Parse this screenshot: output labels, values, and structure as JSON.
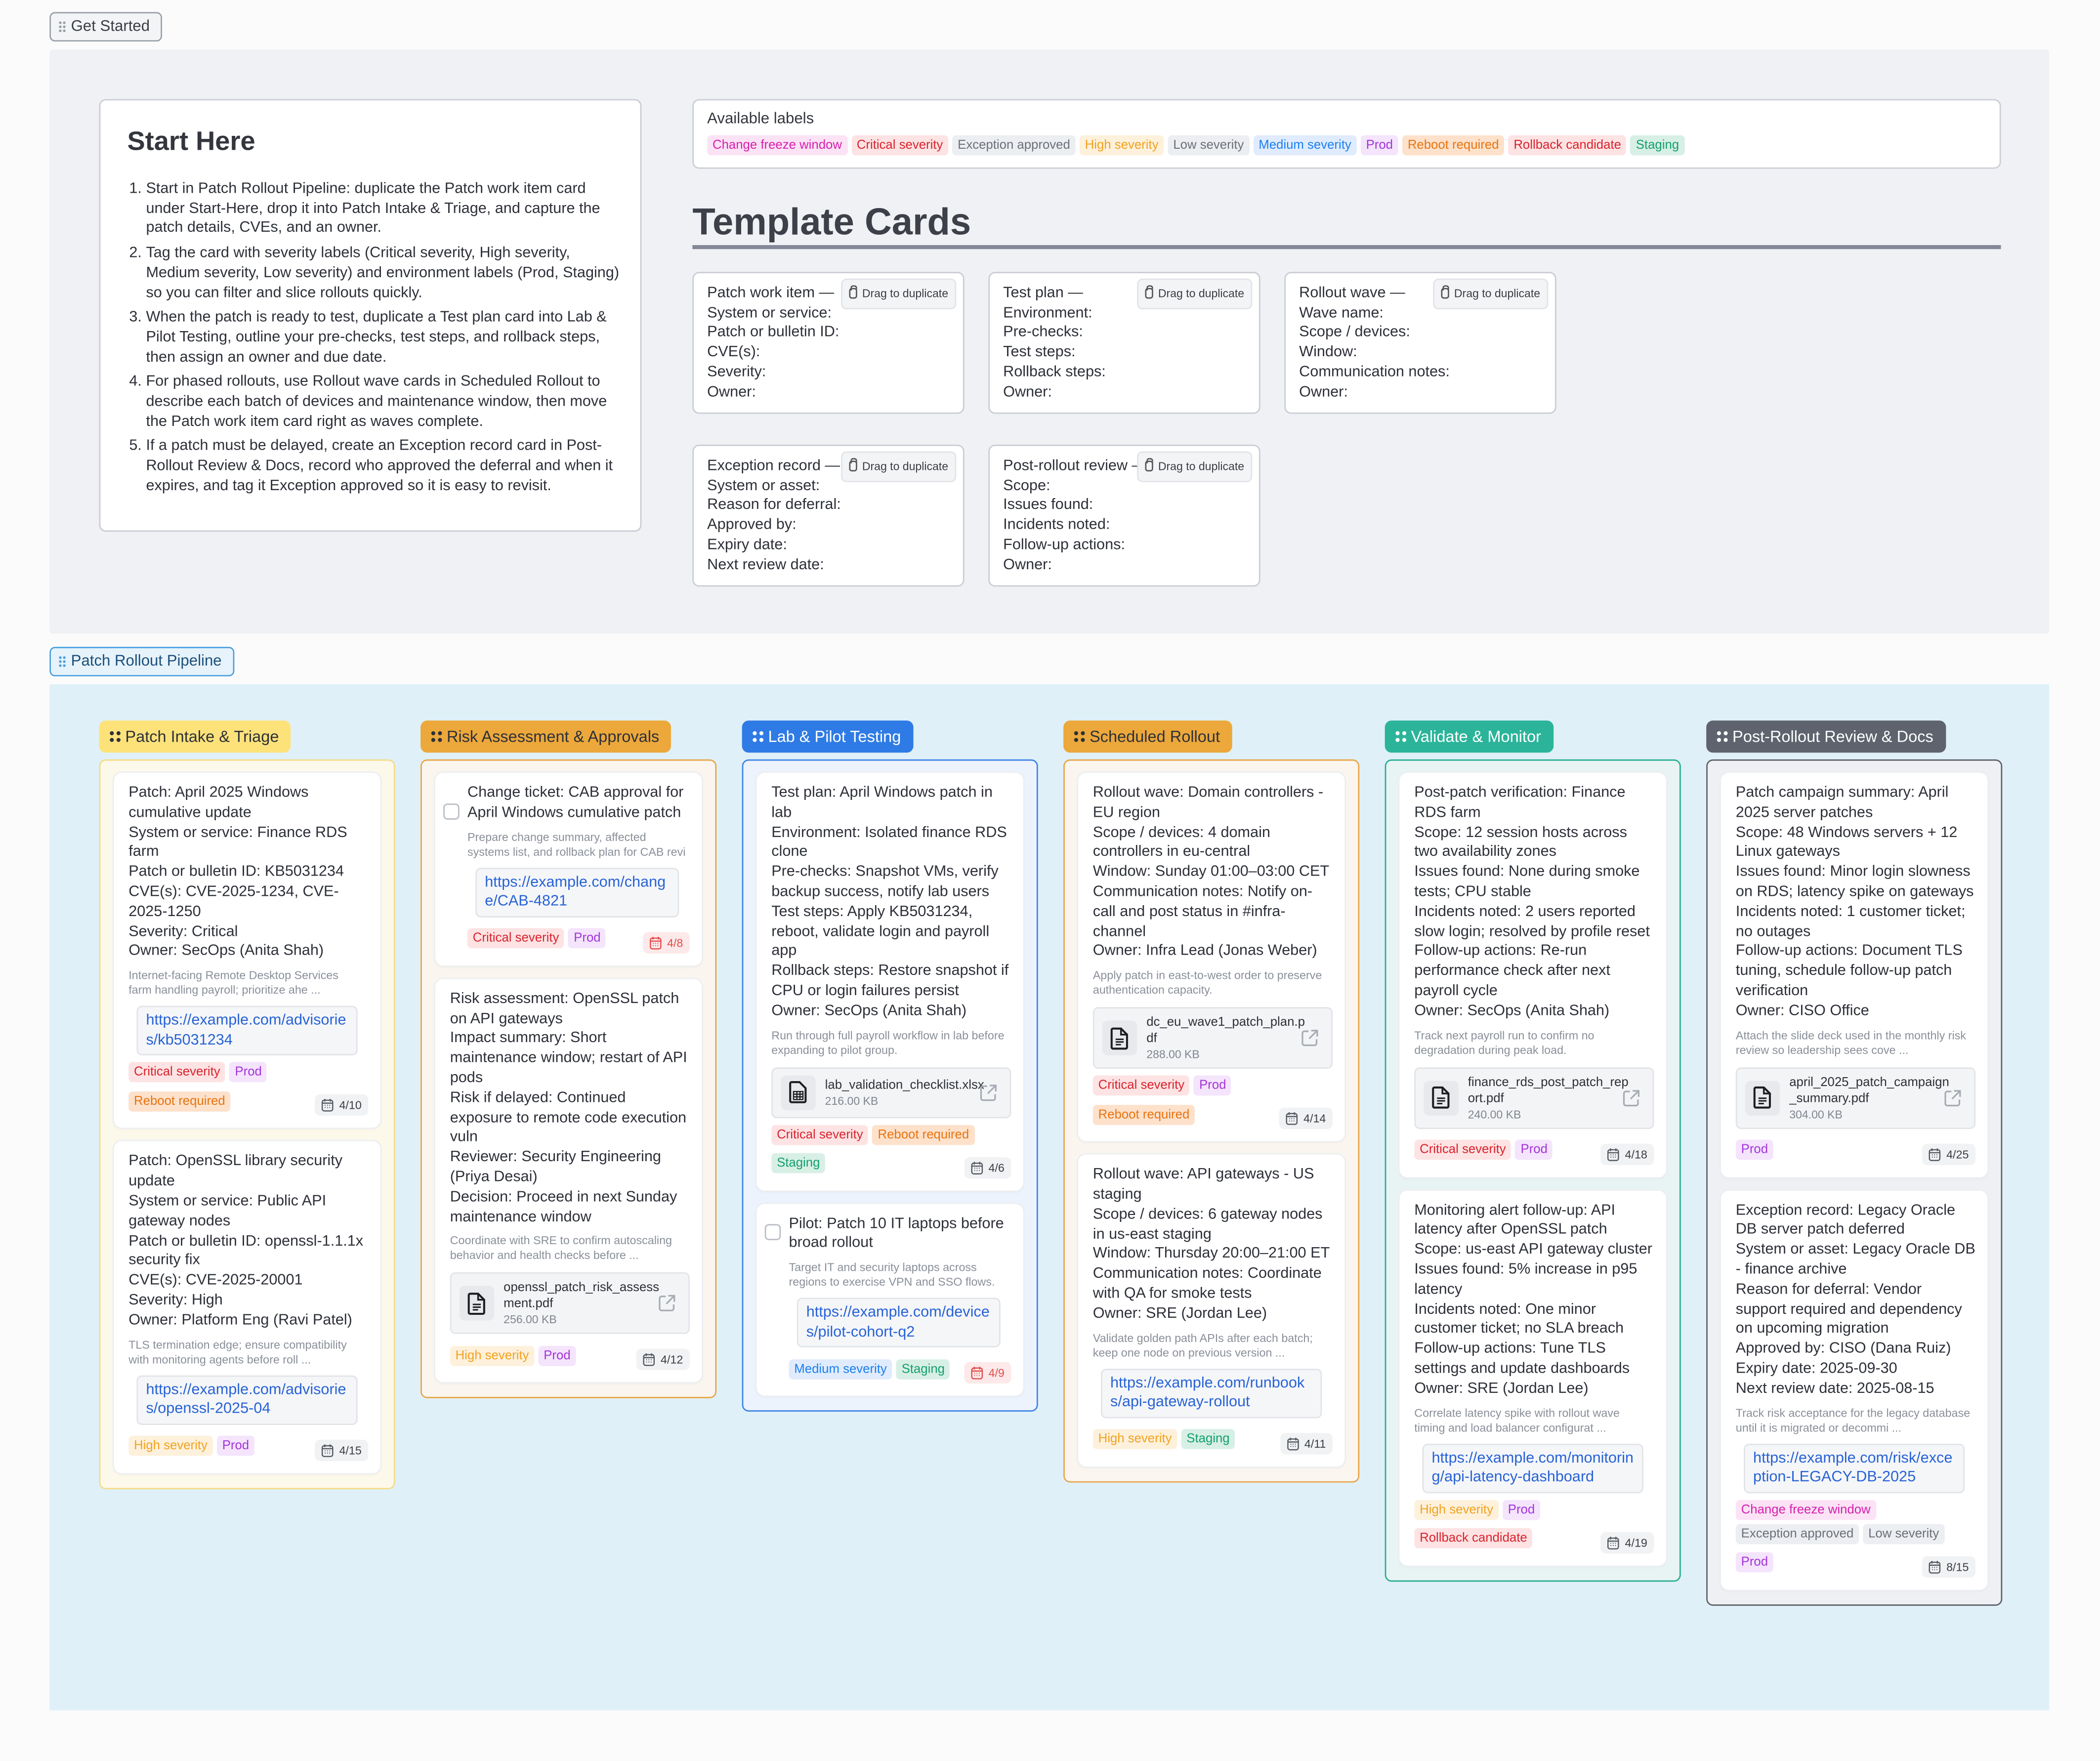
{
  "frames": {
    "get_started": "Get Started",
    "pipeline": "Patch Rollout Pipeline"
  },
  "start_here": {
    "title": "Start Here",
    "steps": [
      "Start in Patch Rollout Pipeline: duplicate the Patch work item card under Start-Here, drop it into Patch Intake & Triage, and capture the patch details, CVEs, and an owner.",
      "Tag the card with severity labels (Critical severity, High severity, Medium severity, Low severity) and environment labels (Prod, Staging) so you can filter and slice rollouts quickly.",
      "When the patch is ready to test, duplicate a Test plan card into Lab & Pilot Testing, outline your pre-checks, test steps, and rollback steps, then assign an owner and due date.",
      "For phased rollouts, use Rollout wave cards in Scheduled Rollout to describe each batch of devices and maintenance window, then move the Patch work item card right as waves complete.",
      "If a patch must be delayed, create an Exception record card in Post-Rollout Review & Docs, record who approved the deferral and when it expires, and tag it Exception approved so it is easy to revisit."
    ]
  },
  "available_labels": {
    "title": "Available labels",
    "items": [
      "Change freeze window",
      "Critical severity",
      "Exception approved",
      "High severity",
      "Low severity",
      "Medium severity",
      "Prod",
      "Reboot required",
      "Rollback candidate",
      "Staging"
    ]
  },
  "label_colors": {
    "Change freeze window": {
      "fg": "#d61fae",
      "bg": "#fbe3f5"
    },
    "Critical severity": {
      "fg": "#d9232e",
      "bg": "#fde3e3"
    },
    "Exception approved": {
      "fg": "#6b7079",
      "bg": "#eceef1"
    },
    "High severity": {
      "fg": "#f2a21f",
      "bg": "#fdf1dc"
    },
    "Low severity": {
      "fg": "#6b7079",
      "bg": "#eceef1"
    },
    "Medium severity": {
      "fg": "#1a7ff0",
      "bg": "#e0ecfd"
    },
    "Prod": {
      "fg": "#a334d9",
      "bg": "#f4e4fc"
    },
    "Reboot required": {
      "fg": "#e8740f",
      "bg": "#fde1cb"
    },
    "Rollback candidate": {
      "fg": "#d9232e",
      "bg": "#fde3e3"
    },
    "Staging": {
      "fg": "#13a06e",
      "bg": "#d8efe6"
    }
  },
  "template_section": {
    "title": "Template Cards",
    "drag_label": "Drag to duplicate",
    "cards": [
      {
        "title": "Patch work item —",
        "fields": [
          "System or service:",
          "Patch or bulletin ID:",
          "CVE(s):",
          "Severity:",
          "Owner:"
        ]
      },
      {
        "title": "Test plan —",
        "fields": [
          "Environment:",
          "Pre-checks:",
          "Test steps:",
          "Rollback steps:",
          "Owner:"
        ]
      },
      {
        "title": "Rollout wave —",
        "fields": [
          "Wave name:",
          "Scope / devices:",
          "Window:",
          "Communication notes:",
          "Owner:"
        ]
      },
      {
        "title": "Exception record —",
        "fields": [
          "System or asset:",
          "Reason for deferral:",
          "Approved by:",
          "Expiry date:",
          "Next review date:"
        ]
      },
      {
        "title": "Post-rollout review —",
        "fields": [
          "Scope:",
          "Issues found:",
          "Incidents noted:",
          "Follow-up actions:",
          "Owner:"
        ]
      }
    ]
  },
  "columns": [
    {
      "title": "Patch Intake & Triage",
      "head_bg": "#fde27a",
      "head_fg": "#2d3038",
      "border": "#f6db86",
      "body_bg": "#fdf9ea",
      "cards": [
        {
          "text": "Patch: April 2025 Windows cumulative update\nSystem or service: Finance RDS farm\nPatch or bulletin ID: KB5031234\nCVE(s): CVE-2025-1234, CVE-2025-1250\nSeverity: Critical\nOwner: SecOps (Anita Shah)",
          "desc": [
            "Internet-facing Remote Desktop Services",
            "farm handling payroll; prioritize ahe ..."
          ],
          "link": "https://example.com/advisories/kb5031234",
          "labels": [
            "Critical severity",
            "Prod",
            "Reboot required"
          ],
          "due": "4/10"
        },
        {
          "text": "Patch: OpenSSL library security update\nSystem or service: Public API gateway nodes\nPatch or bulletin ID: openssl-1.1.1x security fix\nCVE(s): CVE-2025-20001\nSeverity: High\nOwner: Platform Eng (Ravi Patel)",
          "desc": [
            "TLS termination edge; ensure compatibility",
            "with monitoring agents before roll ..."
          ],
          "link": "https://example.com/advisories/openssl-2025-04",
          "labels": [
            "High severity",
            "Prod"
          ],
          "due": "4/15"
        }
      ]
    },
    {
      "title": "Risk Assessment & Approvals",
      "head_bg": "#eca83b",
      "head_fg": "#2d3038",
      "border": "#e9a444",
      "body_bg": "#faf6ef",
      "cards": [
        {
          "checkbox": true,
          "checked": false,
          "text": "Change ticket: CAB approval for April Windows cumulative patch",
          "desc": [
            "Prepare change summary, affected",
            "systems list, and rollback plan for CAB revi"
          ],
          "link": "https://example.com/change/CAB-4821",
          "labels": [
            "Critical severity",
            "Prod"
          ],
          "due": "4/8",
          "overdue": true
        },
        {
          "text": "Risk assessment: OpenSSL patch on API gateways\nImpact summary: Short maintenance window; restart of API pods\nRisk if delayed: Continued exposure to remote code execution vuln\nReviewer: Security Engineering (Priya Desai)\nDecision: Proceed in next Sunday maintenance window",
          "desc": [
            "Coordinate with SRE to confirm autoscaling",
            "behavior and health checks before ..."
          ],
          "attachment": {
            "name": "openssl_patch_risk_assessment.pdf",
            "size": "256.00 KB",
            "icon": "document-icon"
          },
          "labels": [
            "High severity",
            "Prod"
          ],
          "due": "4/12"
        }
      ]
    },
    {
      "title": "Lab & Pilot Testing",
      "head_bg": "#2f7be5",
      "head_fg": "#ffffff",
      "border": "#3b82e6",
      "body_bg": "#ecf3fd",
      "cards": [
        {
          "text": "Test plan: April Windows patch in lab\nEnvironment: Isolated finance RDS clone\nPre-checks: Snapshot VMs, verify backup success, notify lab users\nTest steps: Apply KB5031234, reboot, validate login and payroll app\nRollback steps: Restore snapshot if CPU or login failures persist\nOwner: SecOps (Anita Shah)",
          "desc": [
            "Run through full payroll workflow in lab before",
            "expanding to pilot group."
          ],
          "attachment": {
            "name": "lab_validation_checklist.xlsx",
            "size": "216.00 KB",
            "icon": "spreadsheet-icon"
          },
          "labels": [
            "Critical severity",
            "Reboot required",
            "Staging"
          ],
          "due": "4/6"
        },
        {
          "checkbox": true,
          "checked": false,
          "text": "Pilot: Patch 10 IT laptops before broad rollout",
          "desc": [
            "Target IT and security laptops across",
            "regions to exercise VPN and SSO flows."
          ],
          "link": "https://example.com/devices/pilot-cohort-q2",
          "labels": [
            "Medium severity",
            "Staging"
          ],
          "due": "4/9",
          "overdue": true
        }
      ]
    },
    {
      "title": "Scheduled Rollout",
      "head_bg": "#eca83b",
      "head_fg": "#2d3038",
      "border": "#e9a444",
      "body_bg": "#faf6ef",
      "cards": [
        {
          "text": "Rollout wave: Domain controllers - EU region\nScope / devices: 4 domain controllers in eu-central\nWindow: Sunday 01:00–03:00 CET\nCommunication notes: Notify on-call and post status in #infra-channel\nOwner: Infra Lead (Jonas Weber)",
          "desc": [
            "Apply patch in east-to-west order to preserve",
            "authentication capacity."
          ],
          "attachment": {
            "name": "dc_eu_wave1_patch_plan.pdf",
            "size": "288.00 KB",
            "icon": "document-icon"
          },
          "labels": [
            "Critical severity",
            "Prod",
            "Reboot required"
          ],
          "due": "4/14"
        },
        {
          "text": "Rollout wave: API gateways - US staging\nScope / devices: 6 gateway nodes in us-east staging\nWindow: Thursday 20:00–21:00 ET\nCommunication notes: Coordinate with QA for smoke tests\nOwner: SRE (Jordan Lee)",
          "desc": [
            "Validate golden path APIs after each batch;",
            "keep one node on previous version ..."
          ],
          "link": "https://example.com/runbooks/api-gateway-rollout",
          "labels": [
            "High severity",
            "Staging"
          ],
          "due": "4/11"
        }
      ]
    },
    {
      "title": "Validate & Monitor",
      "head_bg": "#2bb49a",
      "head_fg": "#ffffff",
      "border": "#27ae8f",
      "body_bg": "#e8f4f3",
      "cards": [
        {
          "text": "Post-patch verification: Finance RDS farm\nScope: 12 session hosts across two availability zones\nIssues found: None during smoke tests; CPU stable\nIncidents noted: 2 users reported slow login; resolved by profile reset\nFollow-up actions: Re-run performance check after next payroll cycle\nOwner: SecOps (Anita Shah)",
          "desc": [
            "Track next payroll run to confirm no",
            "degradation during peak load."
          ],
          "attachment": {
            "name": "finance_rds_post_patch_report.pdf",
            "size": "240.00 KB",
            "icon": "document-icon"
          },
          "labels": [
            "Critical severity",
            "Prod"
          ],
          "due": "4/18"
        },
        {
          "text": "Monitoring alert follow-up: API latency after OpenSSL patch\nScope: us-east API gateway cluster\nIssues found: 5% increase in p95 latency\nIncidents noted: One minor customer ticket; no SLA breach\nFollow-up actions: Tune TLS settings and update dashboards\nOwner: SRE (Jordan Lee)",
          "desc": [
            "Correlate latency spike with rollout wave",
            "timing and load balancer configurat ..."
          ],
          "link": "https://example.com/monitoring/api-latency-dashboard",
          "labels": [
            "High severity",
            "Prod",
            "Rollback candidate"
          ],
          "due": "4/19"
        }
      ]
    },
    {
      "title": "Post-Rollout Review & Docs",
      "head_bg": "#5e636e",
      "head_fg": "#ffffff",
      "border": "#5b6068",
      "body_bg": "#eef0f3",
      "cards": [
        {
          "text": "Patch campaign summary: April 2025 server patches\nScope: 48 Windows servers + 12 Linux gateways\nIssues found: Minor login slowness on RDS; latency spike on gateways\nIncidents noted: 1 customer ticket; no outages\nFollow-up actions: Document TLS tuning, schedule follow-up patch verification\nOwner: CISO Office",
          "desc": [
            "Attach the slide deck used in the monthly risk",
            "review so leadership sees cove ..."
          ],
          "attachment": {
            "name": "april_2025_patch_campaign_summary.pdf",
            "size": "304.00 KB",
            "icon": "document-icon"
          },
          "labels": [
            "Prod"
          ],
          "due": "4/25"
        },
        {
          "text": "Exception record: Legacy Oracle DB server patch deferred\nSystem or asset: Legacy Oracle DB - finance archive\nReason for deferral: Vendor support required and dependency on upcoming migration\nApproved by: CISO (Dana Ruiz)\nExpiry date: 2025-09-30\nNext review date: 2025-08-15",
          "desc": [
            "Track risk acceptance for the legacy database",
            "until it is migrated or decommi ..."
          ],
          "link": "https://example.com/risk/exception-LEGACY-DB-2025",
          "labels": [
            "Change freeze window",
            "Exception approved",
            "Low severity",
            "Prod"
          ],
          "due": "8/15"
        }
      ]
    }
  ]
}
